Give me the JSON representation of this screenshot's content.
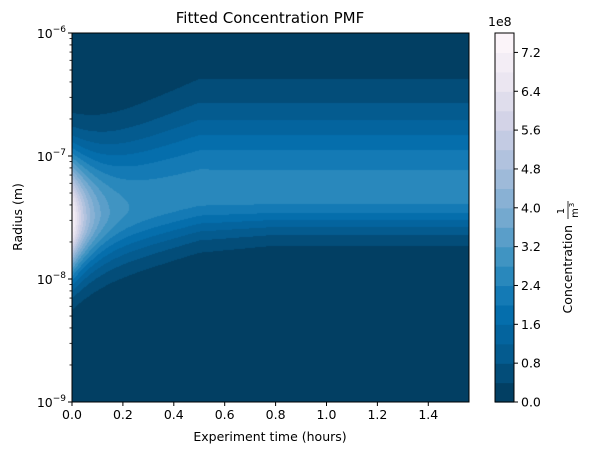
{
  "chart_data": {
    "type": "heatmap",
    "title": "Fitted Concentration PMF",
    "xlabel": "Experiment time (hours)",
    "ylabel": "Radius (m)",
    "x_ticks": [
      "0.0",
      "0.2",
      "0.4",
      "0.6",
      "0.8",
      "1.0",
      "1.2",
      "1.4"
    ],
    "x_tick_values": [
      0.0,
      0.2,
      0.4,
      0.6,
      0.8,
      1.0,
      1.2,
      1.4
    ],
    "xlim": [
      0.0,
      1.56
    ],
    "y_scale": "log",
    "y_ticks": [
      {
        "base": "10",
        "exp": "−9",
        "value": 1e-09
      },
      {
        "base": "10",
        "exp": "−8",
        "value": 1e-08
      },
      {
        "base": "10",
        "exp": "−7",
        "value": 1e-07
      },
      {
        "base": "10",
        "exp": "−6",
        "value": 1e-06
      }
    ],
    "ylim": [
      1e-09,
      1e-06
    ],
    "colorbar": {
      "label_text": "Concentration",
      "label_frac_num": "1",
      "label_frac_den": "m",
      "label_frac_den_exp": "3",
      "scale_note": "1e8",
      "ticks": [
        "0.0",
        "0.8",
        "1.6",
        "2.4",
        "3.2",
        "4.0",
        "4.8",
        "5.6",
        "6.4",
        "7.2"
      ],
      "tick_values": [
        0.0,
        0.8,
        1.6,
        2.4,
        3.2,
        4.0,
        4.8,
        5.6,
        6.4,
        7.2
      ],
      "range": [
        0.0,
        7.6
      ],
      "levels": 19,
      "colormap": [
        "#023858",
        "#045a8d",
        "#0570b0",
        "#3690c0",
        "#74a9cf",
        "#a6bddb",
        "#d0d1e6",
        "#ece7f2",
        "#fff7fb"
      ]
    },
    "surface": {
      "peak_value": 7.6,
      "peak_time": 0.0,
      "peak_radius": 3e-08,
      "ridge_value_late": 2.6,
      "ridge_center_late_radius": 5e-08
    },
    "grid": false
  }
}
